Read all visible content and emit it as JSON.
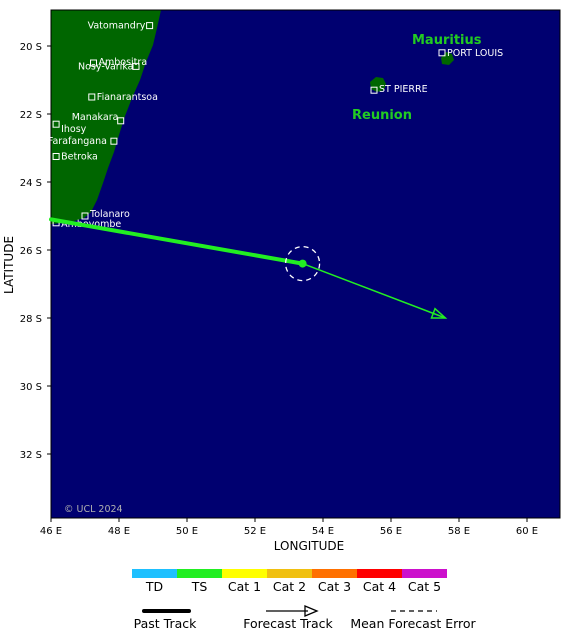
{
  "axes": {
    "x_title": "LONGITUDE",
    "y_title": "LATITUDE",
    "x_ticks": [
      "46 E",
      "48 E",
      "50 E",
      "52 E",
      "54 E",
      "56 E",
      "58 E",
      "60 E"
    ],
    "y_ticks": [
      "20 S",
      "22 S",
      "24 S",
      "26 S",
      "28 S",
      "30 S",
      "32 S"
    ],
    "lon_range": [
      46,
      60.8
    ],
    "lat_range": [
      19.0,
      34.0
    ]
  },
  "places": [
    {
      "name": "Vatomandry",
      "lon": 48.9,
      "lat": 19.4
    },
    {
      "name": "Ambositra",
      "lon": 47.25,
      "lat": 20.5
    },
    {
      "name": "Nosy-Varika",
      "lon": 48.5,
      "lat": 20.6
    },
    {
      "name": "Fianarantsoa",
      "lon": 47.2,
      "lat": 21.5
    },
    {
      "name": "Manakara",
      "lon": 48.05,
      "lat": 22.2
    },
    {
      "name": "Ihosy",
      "lon": 46.15,
      "lat": 22.3
    },
    {
      "name": "Farafangana",
      "lon": 47.85,
      "lat": 22.8
    },
    {
      "name": "Betroka",
      "lon": 46.15,
      "lat": 23.25
    },
    {
      "name": "Tolanaro",
      "lon": 47.0,
      "lat": 25.0
    },
    {
      "name": "Ambovombe",
      "lon": 46.15,
      "lat": 25.2
    },
    {
      "name": "ST PIERRE",
      "lon": 55.5,
      "lat": 21.3
    },
    {
      "name": "PORT LOUIS",
      "lon": 57.5,
      "lat": 20.2
    }
  ],
  "regions": [
    {
      "name": "Mauritius"
    },
    {
      "name": "Reunion"
    }
  ],
  "copyright": "© UCL 2024",
  "storm": {
    "category": "TS",
    "past_track": [
      {
        "lon": 46.0,
        "lat": 25.1
      },
      {
        "lon": 53.4,
        "lat": 26.4
      }
    ],
    "current_position": {
      "lon": 53.4,
      "lat": 26.4
    },
    "forecast_track": [
      {
        "lon": 53.4,
        "lat": 26.4
      },
      {
        "lon": 57.6,
        "lat": 28.0
      }
    ]
  },
  "legend": {
    "categories": [
      {
        "label": "TD",
        "color": "#1ec0ff"
      },
      {
        "label": "TS",
        "color": "#22ee22"
      },
      {
        "label": "Cat 1",
        "color": "#ffff00"
      },
      {
        "label": "Cat 2",
        "color": "#f0c010"
      },
      {
        "label": "Cat 3",
        "color": "#ff7000"
      },
      {
        "label": "Cat 4",
        "color": "#ff0000"
      },
      {
        "label": "Cat 5",
        "color": "#cc10cc"
      }
    ],
    "past_track_label": "Past Track",
    "forecast_track_label": "Forecast Track",
    "error_label": "Mean Forecast Error"
  },
  "colors": {
    "ocean": "#000070",
    "land": "#006600",
    "track": "#22ee22"
  }
}
